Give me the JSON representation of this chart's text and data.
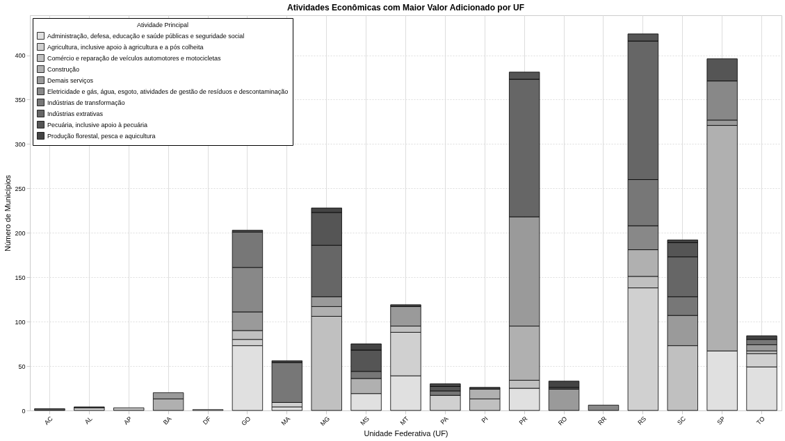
{
  "chart_data": {
    "type": "bar",
    "title": "Atividades Econômicas com Maior Valor Adicionado por UF",
    "xlabel": "Unidade Federativa (UF)",
    "ylabel": "Número de Municípios",
    "legend_title": "Atividade Principal",
    "categories": [
      "AC",
      "AL",
      "AP",
      "BA",
      "DF",
      "GO",
      "MA",
      "MG",
      "MS",
      "MT",
      "PA",
      "PI",
      "PR",
      "RO",
      "RR",
      "RS",
      "SC",
      "SP",
      "TO"
    ],
    "stacked": true,
    "ylim": [
      0,
      445
    ],
    "yticks": [
      0,
      50,
      100,
      150,
      200,
      250,
      300,
      350,
      400
    ],
    "grid": true,
    "legend": "top left",
    "series": [
      {
        "name": "Administração, defesa, educação e saúde públicas e seguridade social",
        "color": "#e0e0e0",
        "values": [
          0,
          0,
          0,
          0,
          1,
          73,
          4,
          0,
          19,
          39,
          0,
          0,
          25,
          0,
          0,
          0,
          0,
          67,
          49
        ]
      },
      {
        "name": "Agricultura, inclusive apoio à agricultura e a pós colheita",
        "color": "#d0d0d0",
        "values": [
          0,
          3,
          0,
          0,
          0,
          7,
          5,
          0,
          0,
          49,
          17,
          0,
          0,
          0,
          0,
          138,
          0,
          0,
          15
        ]
      },
      {
        "name": "Comércio e reparação de veículos automotores e motocicletas",
        "color": "#c0c0c0",
        "values": [
          0,
          0,
          3,
          0,
          0,
          10,
          0,
          106,
          0,
          7,
          0,
          13,
          9,
          0,
          0,
          13,
          73,
          0,
          3
        ]
      },
      {
        "name": "Construção",
        "color": "#b0b0b0",
        "values": [
          0,
          0,
          0,
          13,
          0,
          0,
          0,
          11,
          17,
          0,
          0,
          11,
          61,
          0,
          0,
          30,
          0,
          254,
          0
        ]
      },
      {
        "name": "Demais serviços",
        "color": "#9a9a9a",
        "values": [
          0,
          0,
          0,
          7,
          0,
          21,
          0,
          11,
          0,
          22,
          0,
          0,
          123,
          24,
          0,
          0,
          34,
          6,
          7
        ]
      },
      {
        "name": "Eletricidade e gás, água, esgoto, atividades de gestão de resíduos e descontaminação",
        "color": "#888888",
        "values": [
          0,
          0,
          0,
          0,
          0,
          50,
          0,
          0,
          0,
          0,
          0,
          0,
          0,
          0,
          6,
          27,
          0,
          44,
          0
        ]
      },
      {
        "name": "Indústrias de transformação",
        "color": "#777777",
        "values": [
          0,
          0,
          0,
          0,
          0,
          40,
          45,
          0,
          8,
          0,
          5,
          0,
          0,
          0,
          0,
          52,
          21,
          0,
          6
        ]
      },
      {
        "name": "Indústrias extrativas",
        "color": "#666666",
        "values": [
          0,
          0,
          0,
          0,
          0,
          0,
          0,
          58,
          0,
          0,
          0,
          0,
          155,
          0,
          0,
          156,
          45,
          0,
          0
        ]
      },
      {
        "name": "Pecuária, inclusive apoio à pecuária",
        "color": "#555555",
        "values": [
          2,
          0,
          0,
          0,
          0,
          2,
          0,
          37,
          24,
          0,
          5,
          0,
          8,
          2,
          0,
          8,
          16,
          25,
          0
        ]
      },
      {
        "name": "Produção florestal, pesca e aquicultura",
        "color": "#444444",
        "values": [
          0,
          1,
          0,
          0,
          0,
          0,
          2,
          5,
          7,
          2,
          3,
          2,
          0,
          7,
          0,
          0,
          3,
          0,
          4
        ]
      }
    ]
  }
}
